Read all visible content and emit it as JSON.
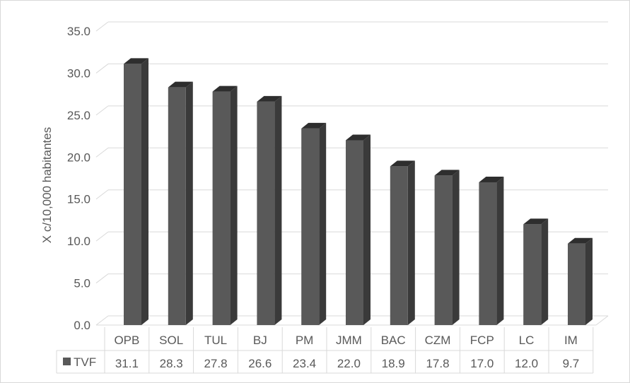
{
  "chart_data": {
    "type": "bar",
    "style": "3d-column",
    "categories": [
      "OPB",
      "SOL",
      "TUL",
      "BJ",
      "PM",
      "JMM",
      "BAC",
      "CZM",
      "FCP",
      "LC",
      "IM"
    ],
    "series": [
      {
        "name": "TVF",
        "values": [
          31.1,
          28.3,
          27.8,
          26.6,
          23.4,
          22.0,
          18.9,
          17.8,
          17.0,
          12.0,
          9.7
        ]
      }
    ],
    "value_labels": [
      "31.1",
      "28.3",
      "27.8",
      "26.6",
      "23.4",
      "22.0",
      "18.9",
      "17.8",
      "17.0",
      "12.0",
      "9.7"
    ],
    "ylabel": "X c/10,000 habitantes",
    "xlabel": "",
    "ylim": [
      0,
      35
    ],
    "yticks": [
      "0.0",
      "5.0",
      "10.0",
      "15.0",
      "20.0",
      "25.0",
      "30.0",
      "35.0"
    ],
    "grid": true,
    "legend": "data-table",
    "colors": {
      "bar_front": "#595959",
      "bar_side": "#3a3a3a",
      "bar_top": "#2e2e2e",
      "grid": "#d9d9d9",
      "text": "#595959"
    }
  }
}
